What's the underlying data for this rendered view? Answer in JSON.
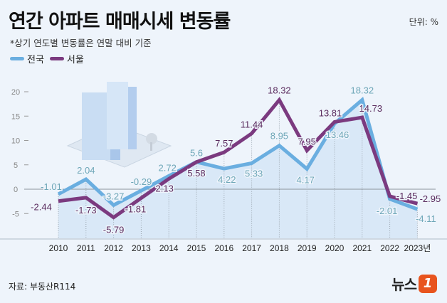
{
  "header": {
    "title": "연간 아파트 매매시세 변동률",
    "unit": "단위: %",
    "note": "*상기 연도별 변동률은 연말 대비 기준"
  },
  "footer": {
    "source": "자료: 부동산R114",
    "logo_text": "뉴스",
    "logo_mark": "1"
  },
  "chart_data": {
    "type": "line",
    "title": "연간 아파트 매매시세 변동률",
    "x": [
      "2010",
      "2011",
      "2012",
      "2013",
      "2014",
      "2015",
      "2016",
      "2017",
      "2018",
      "2019",
      "2020",
      "2021",
      "2022",
      "2023년"
    ],
    "yticks": [
      "20",
      "15",
      "10",
      "5",
      "0",
      "-5"
    ],
    "ylim": [
      -10,
      22
    ],
    "legend_placement": "top-left",
    "grid": "vertical dotted lines at each year",
    "series": [
      {
        "name": "전국",
        "color": "#6aaee0",
        "label_color": "#6fa7b8",
        "values": [
          -1.01,
          2.04,
          -3.27,
          -0.29,
          2.72,
          5.6,
          4.22,
          5.33,
          8.95,
          4.17,
          13.46,
          18.32,
          -2.01,
          -4.11
        ],
        "labels": [
          "-1.01",
          "2.04",
          "-3.27",
          "-0.29",
          "2.72",
          "5.6",
          "4.22",
          "5.33",
          "8.95",
          "4.17",
          "13.46",
          "18.32",
          "-2.01",
          "-4.11"
        ]
      },
      {
        "name": "서울",
        "color": "#7b3a7f",
        "label_color": "#5a2b5e",
        "values": [
          -2.44,
          -1.73,
          -5.79,
          -1.81,
          2.13,
          5.58,
          7.57,
          11.44,
          18.32,
          7.95,
          13.81,
          14.73,
          -1.45,
          -2.95
        ],
        "labels": [
          "-2.44",
          "-1.73",
          "-5.79",
          "-1.81",
          "2.13",
          "5.58",
          "7.57",
          "11.44",
          "18.32",
          "7.95",
          "13.81",
          "14.73",
          "-1.45",
          "-2.95"
        ]
      }
    ]
  }
}
